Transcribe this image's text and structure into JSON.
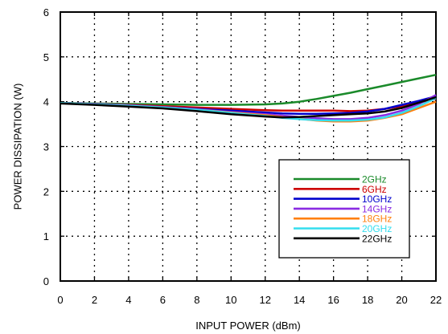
{
  "chart_data": {
    "type": "line",
    "xlabel": "INPUT POWER (dBm)",
    "ylabel": "POWER DISSIPATION (W)",
    "xlim": [
      0,
      22
    ],
    "ylim": [
      0,
      6
    ],
    "xticks": [
      0,
      2,
      4,
      6,
      8,
      10,
      12,
      14,
      16,
      18,
      20,
      22
    ],
    "yticks": [
      0,
      1,
      2,
      3,
      4,
      5,
      6
    ],
    "grid": true,
    "grid_style": "dotted",
    "legend_position": "bottom-right",
    "series": [
      {
        "name": "2GHz",
        "color": "#1a8a2a",
        "x": [
          0,
          2,
          4,
          6,
          8,
          10,
          12,
          13,
          14,
          15,
          16,
          17,
          18,
          19,
          20,
          21,
          22
        ],
        "y": [
          3.97,
          3.96,
          3.95,
          3.94,
          3.93,
          3.93,
          3.94,
          3.96,
          4.0,
          4.06,
          4.13,
          4.2,
          4.28,
          4.36,
          4.44,
          4.52,
          4.6
        ]
      },
      {
        "name": "6GHz",
        "color": "#cc0000",
        "x": [
          0,
          2,
          4,
          6,
          8,
          10,
          12,
          13,
          14,
          15,
          16,
          17,
          18,
          19,
          20,
          21,
          22
        ],
        "y": [
          3.97,
          3.95,
          3.93,
          3.9,
          3.87,
          3.84,
          3.81,
          3.8,
          3.8,
          3.8,
          3.8,
          3.79,
          3.8,
          3.84,
          3.9,
          3.98,
          4.06
        ]
      },
      {
        "name": "10GHz",
        "color": "#0000cc",
        "x": [
          0,
          2,
          4,
          6,
          8,
          10,
          12,
          13,
          14,
          15,
          16,
          17,
          18,
          19,
          20,
          21,
          22
        ],
        "y": [
          3.97,
          3.95,
          3.92,
          3.88,
          3.84,
          3.8,
          3.76,
          3.74,
          3.73,
          3.73,
          3.74,
          3.75,
          3.78,
          3.84,
          3.93,
          4.02,
          4.12
        ]
      },
      {
        "name": "14GHz",
        "color": "#8a2be2",
        "x": [
          0,
          2,
          4,
          6,
          8,
          10,
          12,
          13,
          14,
          15,
          16,
          17,
          18,
          19,
          20,
          21,
          22
        ],
        "y": [
          3.97,
          3.95,
          3.92,
          3.88,
          3.83,
          3.77,
          3.72,
          3.69,
          3.66,
          3.63,
          3.61,
          3.61,
          3.64,
          3.7,
          3.8,
          3.95,
          4.15
        ]
      },
      {
        "name": "18GHz",
        "color": "#ff7f0e",
        "x": [
          0,
          2,
          4,
          6,
          8,
          10,
          12,
          13,
          14,
          15,
          16,
          17,
          18,
          19,
          20,
          21,
          22
        ],
        "y": [
          3.97,
          3.94,
          3.91,
          3.87,
          3.82,
          3.76,
          3.7,
          3.66,
          3.62,
          3.58,
          3.56,
          3.56,
          3.58,
          3.64,
          3.72,
          3.86,
          4.0
        ]
      },
      {
        "name": "20GHz",
        "color": "#33ddee",
        "x": [
          0,
          2,
          4,
          6,
          8,
          10,
          12,
          13,
          14,
          15,
          16,
          17,
          18,
          19,
          20,
          21,
          22
        ],
        "y": [
          3.97,
          3.94,
          3.91,
          3.87,
          3.82,
          3.75,
          3.68,
          3.64,
          3.61,
          3.59,
          3.58,
          3.58,
          3.6,
          3.65,
          3.75,
          3.9,
          4.08
        ]
      },
      {
        "name": "22GHz",
        "color": "#000000",
        "x": [
          0,
          2,
          4,
          6,
          8,
          10,
          12,
          13,
          14,
          15,
          16,
          17,
          18,
          19,
          20,
          21,
          22
        ],
        "y": [
          3.96,
          3.93,
          3.89,
          3.85,
          3.79,
          3.72,
          3.67,
          3.65,
          3.66,
          3.68,
          3.7,
          3.72,
          3.74,
          3.78,
          3.86,
          3.98,
          4.1
        ]
      }
    ]
  }
}
